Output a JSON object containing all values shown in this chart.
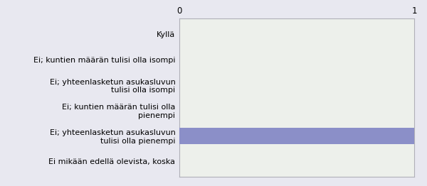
{
  "categories": [
    "Ei mikään edellä olevista, koska",
    "Ei; yhteenlasketun asukasluvun\ntulisi olla pienempi",
    "Ei; kuntien määrän tulisi olla\npienempi",
    "Ei; yhteenlasketun asukasluvun\ntulisi olla isompi",
    "Ei; kuntien määrän tulisi olla isompi",
    "Kyllä"
  ],
  "values": [
    0,
    1,
    0,
    0,
    0,
    0
  ],
  "bar_color": "#8b8fc8",
  "outer_bg_color": "#e8e8f0",
  "plot_bg_color": "#edf0eb",
  "xlim": [
    0,
    1
  ],
  "xticks": [
    0,
    1
  ],
  "bar_height": 0.65,
  "label_fontsize": 8.0,
  "tick_fontsize": 8.5,
  "spine_color": "#b0b0b8"
}
